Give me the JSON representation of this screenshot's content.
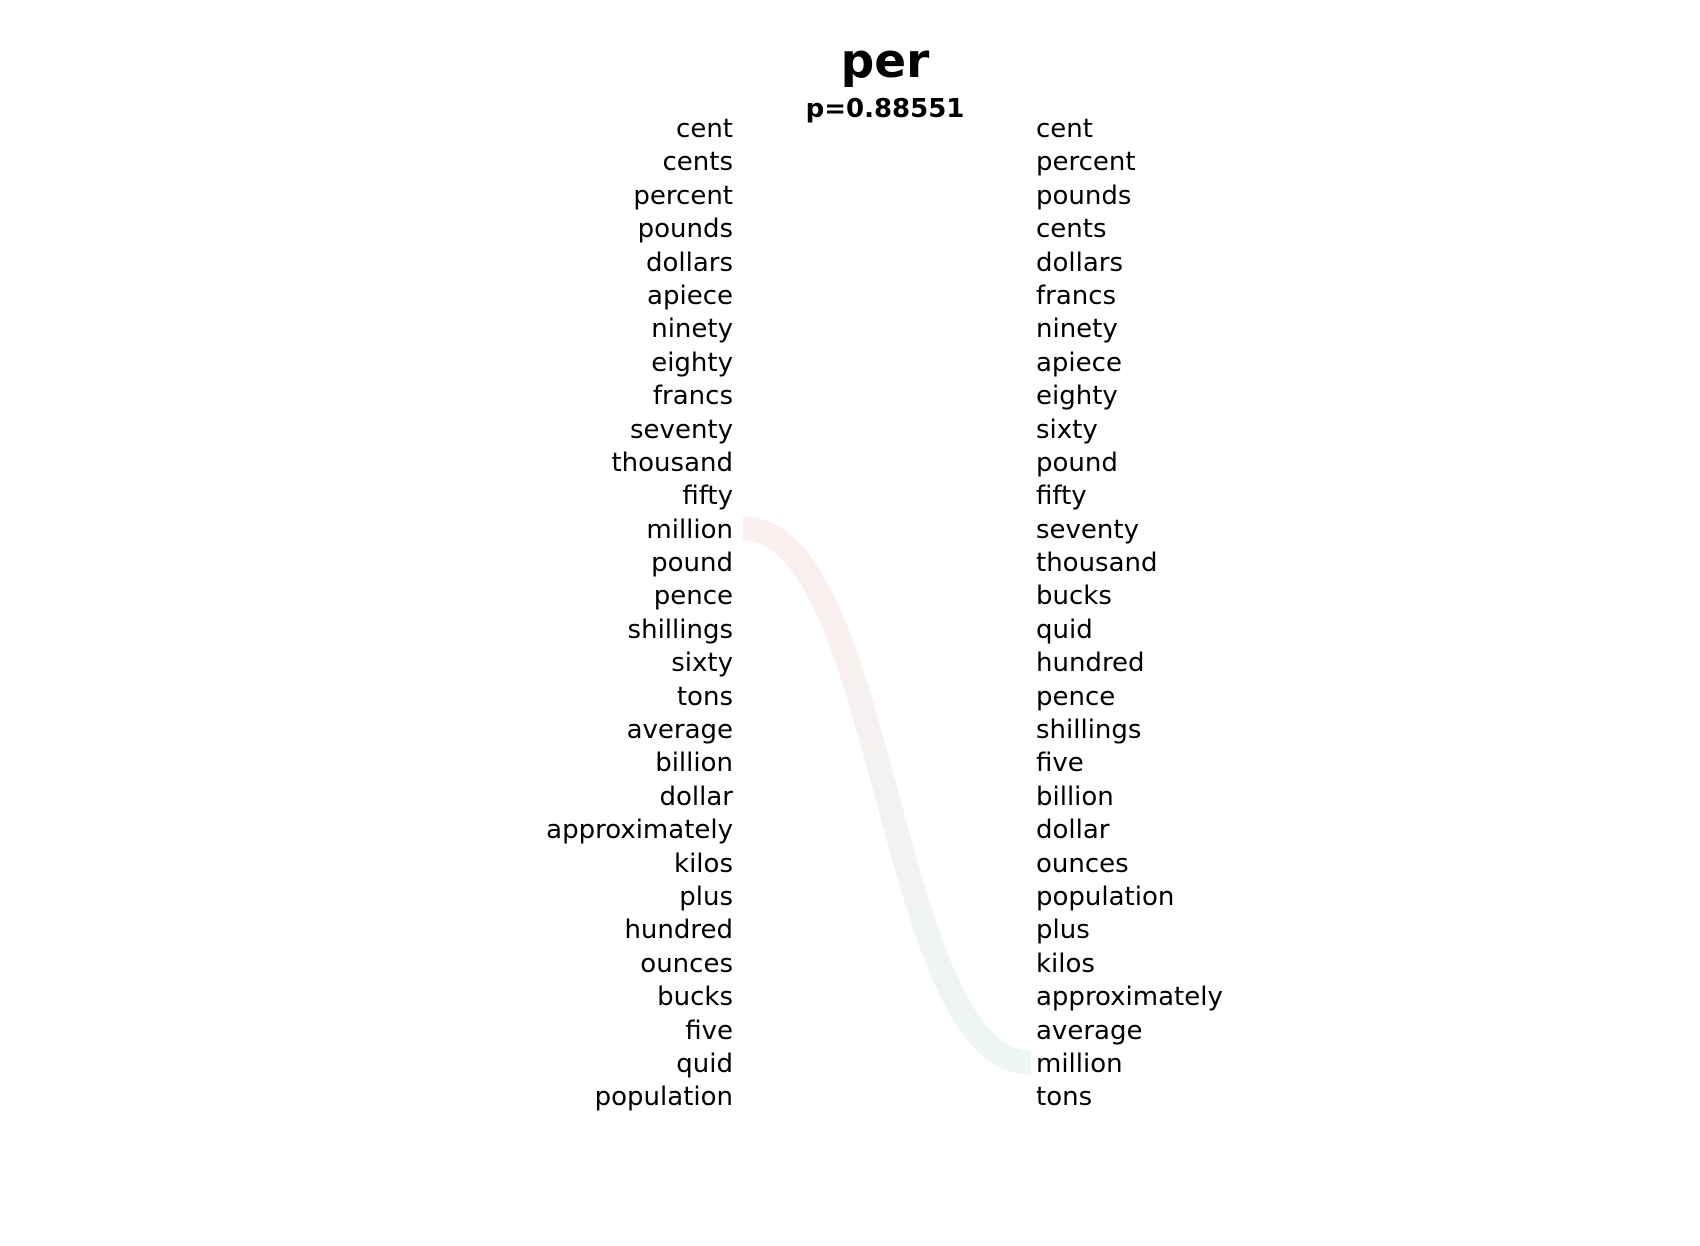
{
  "title": "per",
  "subtitle": "p=0.88551",
  "left_words": [
    "cent",
    "cents",
    "percent",
    "pounds",
    "dollars",
    "apiece",
    "ninety",
    "eighty",
    "francs",
    "seventy",
    "thousand",
    "fifty",
    "million",
    "pound",
    "pence",
    "shillings",
    "sixty",
    "tons",
    "average",
    "billion",
    "dollar",
    "approximately",
    "kilos",
    "plus",
    "hundred",
    "ounces",
    "bucks",
    "five",
    "quid",
    "population"
  ],
  "right_words": [
    "cent",
    "percent",
    "pounds",
    "cents",
    "dollars",
    "francs",
    "ninety",
    "apiece",
    "eighty",
    "sixty",
    "pound",
    "fifty",
    "seventy",
    "thousand",
    "bucks",
    "quid",
    "hundred",
    "pence",
    "shillings",
    "five",
    "billion",
    "dollar",
    "ounces",
    "population",
    "plus",
    "kilos",
    "approximately",
    "average",
    "million",
    "tons"
  ],
  "links": [
    {
      "from_left_index": 12,
      "to_right_index": 28,
      "color_start": "#f7d9da",
      "color_end": "#d4ece2"
    }
  ]
}
